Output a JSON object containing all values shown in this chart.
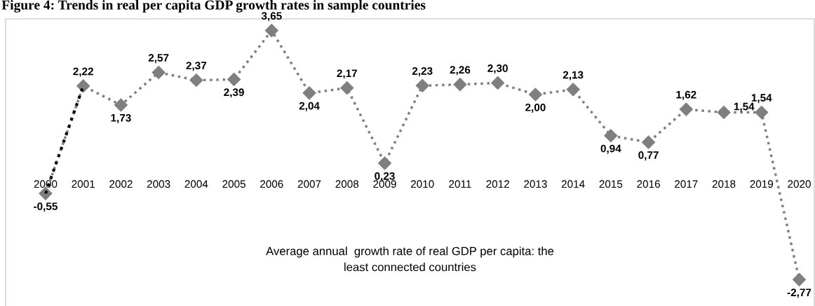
{
  "chart_data": {
    "type": "line",
    "title": "Figure 4: Trends in real per capita GDP growth rates in sample countries",
    "subtitle": "Average annual  growth rate of real GDP per capita: the\nleast connected countries",
    "categories": [
      "2000",
      "2001",
      "2002",
      "2003",
      "2004",
      "2005",
      "2006",
      "2007",
      "2008",
      "2009",
      "2010",
      "2011",
      "2012",
      "2013",
      "2014",
      "2015",
      "2016",
      "2017",
      "2018",
      "2019",
      "2020"
    ],
    "series": [
      {
        "color": "#000000",
        "marker": "none",
        "values": [
          -0.55,
          2.22,
          null,
          null,
          null,
          null,
          null,
          null,
          null,
          null,
          null,
          null,
          null,
          null,
          null,
          null,
          null,
          null,
          null,
          null,
          null
        ]
      },
      {
        "color": "#7f7f7f",
        "marker": "diamond",
        "values": [
          -0.55,
          2.22,
          1.73,
          2.57,
          2.37,
          2.39,
          3.65,
          2.04,
          2.17,
          0.23,
          2.23,
          2.26,
          2.3,
          2.0,
          2.13,
          0.94,
          0.77,
          1.62,
          1.54,
          1.54,
          -2.77
        ],
        "value_labels": [
          "-0,55",
          "2,22",
          "1,73",
          "2,57",
          "2,37",
          "2,39",
          "3,65",
          "2,04",
          "2,17",
          "0,23",
          "2,23",
          "2,26",
          "2,30",
          "2,00",
          "2,13",
          "0,94",
          "0,77",
          "1,62",
          "1,54",
          "1,54",
          "-2,77"
        ]
      }
    ],
    "ylim": [
      -3.45,
      3.95
    ],
    "line_style": "dotted",
    "grid": false,
    "tick_labels": "x"
  }
}
